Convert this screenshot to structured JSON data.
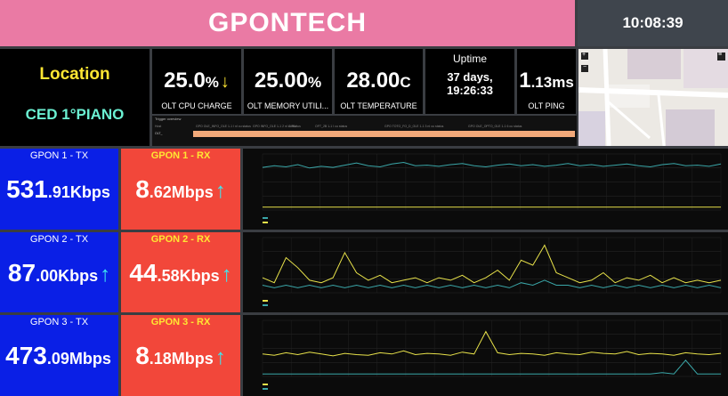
{
  "header": {
    "title": "GPONTECH",
    "clock": "10:08:39"
  },
  "location": {
    "title": "Location",
    "value": "CED 1°PIANO"
  },
  "metrics": {
    "cpu": {
      "int": "25.0",
      "unit": "%",
      "arrow": "↓",
      "label": "OLT CPU CHARGE"
    },
    "memory": {
      "int": "25.00",
      "unit": "%",
      "label": "OLT MEMORY UTILI..."
    },
    "temperature": {
      "int": "28.00",
      "unit": "C",
      "label": "OLT TEMPERATURE"
    },
    "uptime": {
      "label": "Uptime",
      "line1": "37 days,",
      "line2": "19:26:33"
    },
    "ping": {
      "int": "1",
      "rest": ".13ms",
      "label": "OLT PING"
    }
  },
  "trigger": {
    "title": "Trigger overview",
    "headers": [
      "Host",
      "GPO OLE_INFO_OLE 1-1 I nI cu status",
      "GPO INFO_OLE 1-1 2 nI cu status",
      "OIPU",
      "OFT_2B 1-1 I cu status",
      "GPO TOTO_FO_D_OLE 1-1 3 nI cu status",
      "GPO OLE_OPTO_OLE 1-1 6 cu status"
    ],
    "row": "OLT_"
  },
  "gpon": [
    {
      "tx_title": "GPON 1 - TX",
      "tx_int": "531",
      "tx_rest": ".91Kbps",
      "tx_arrow": "",
      "rx_title": "GPON 1 - RX",
      "rx_int": "8",
      "rx_rest": ".62Mbps",
      "rx_arrow": "↑"
    },
    {
      "tx_title": "GPON 2 - TX",
      "tx_int": "87",
      "tx_rest": ".00Kbps",
      "tx_arrow": "↑",
      "rx_title": "GPON 2 - RX",
      "rx_int": "44",
      "rx_rest": ".58Kbps",
      "rx_arrow": "↑"
    },
    {
      "tx_title": "GPON 3 - TX",
      "tx_int": "473",
      "tx_rest": ".09Mbps",
      "tx_arrow": "",
      "rx_title": "GPON 3 - RX",
      "rx_int": "8",
      "rx_rest": ".18Mbps",
      "rx_arrow": "↑"
    }
  ],
  "colors": {
    "title_bg": "#ea7aa4",
    "tx_bg": "#0a1fe6",
    "rx_bg": "#f2473a",
    "accent_yellow": "#ffe633",
    "accent_cyan": "#3ee8f0",
    "series_yellow": "#e8e24a",
    "series_teal": "#3aa6a8"
  },
  "chart_data": [
    {
      "type": "line",
      "series": [
        {
          "color": "#3aa6a8",
          "values": [
            7.6,
            7.9,
            7.7,
            8.1,
            7.5,
            7.8,
            7.6,
            8.0,
            8.4,
            7.9,
            7.7,
            8.2,
            8.5,
            7.9,
            8.0,
            7.8,
            8.1,
            8.3,
            7.9,
            7.7,
            8.0,
            8.2,
            7.9,
            8.1,
            7.8,
            8.0,
            8.3,
            7.9,
            8.1,
            7.8,
            8.0,
            8.2,
            7.9,
            7.7,
            8.1,
            8.3,
            7.9,
            8.0,
            7.8,
            8.2
          ]
        },
        {
          "color": "#e8e24a",
          "values": [
            0.5,
            0.5,
            0.5,
            0.5,
            0.5,
            0.5,
            0.5,
            0.5,
            0.5,
            0.5,
            0.5,
            0.5,
            0.5,
            0.5,
            0.5,
            0.5,
            0.5,
            0.5,
            0.5,
            0.5,
            0.5,
            0.5,
            0.5,
            0.5,
            0.5,
            0.5,
            0.5,
            0.5,
            0.5,
            0.5,
            0.5,
            0.5,
            0.5,
            0.5,
            0.5,
            0.5,
            0.5,
            0.5,
            0.5,
            0.5
          ]
        }
      ],
      "ylim": [
        0,
        10
      ]
    },
    {
      "type": "line",
      "series": [
        {
          "color": "#e8e24a",
          "values": [
            0.6,
            0.4,
            1.4,
            1.0,
            0.5,
            0.4,
            0.6,
            1.6,
            0.8,
            0.5,
            0.7,
            0.4,
            0.5,
            0.6,
            0.4,
            0.6,
            0.5,
            0.7,
            0.4,
            0.6,
            0.9,
            0.5,
            1.3,
            1.1,
            1.9,
            0.8,
            0.6,
            0.4,
            0.5,
            0.8,
            0.4,
            0.6,
            0.5,
            0.7,
            0.4,
            0.6,
            0.4,
            0.5,
            0.4,
            0.5
          ]
        },
        {
          "color": "#3aa6a8",
          "values": [
            0.3,
            0.2,
            0.3,
            0.2,
            0.3,
            0.2,
            0.3,
            0.2,
            0.3,
            0.2,
            0.3,
            0.2,
            0.3,
            0.2,
            0.3,
            0.2,
            0.3,
            0.2,
            0.3,
            0.2,
            0.3,
            0.2,
            0.4,
            0.3,
            0.5,
            0.3,
            0.3,
            0.2,
            0.3,
            0.2,
            0.3,
            0.2,
            0.3,
            0.2,
            0.3,
            0.2,
            0.3,
            0.2,
            0.3,
            0.2
          ]
        }
      ],
      "ylim": [
        0,
        2.2
      ]
    },
    {
      "type": "line",
      "series": [
        {
          "color": "#e8e24a",
          "values": [
            3.6,
            3.4,
            3.8,
            3.5,
            3.9,
            3.6,
            3.3,
            3.7,
            3.5,
            3.4,
            3.8,
            3.6,
            4.1,
            3.5,
            3.7,
            3.6,
            3.4,
            3.9,
            3.6,
            7.2,
            3.8,
            3.5,
            3.7,
            3.6,
            3.4,
            3.8,
            3.6,
            3.5,
            3.9,
            3.7,
            3.6,
            4.0,
            3.5,
            3.7,
            3.6,
            3.4,
            3.8,
            3.6,
            3.5,
            3.7
          ]
        },
        {
          "color": "#3aa6a8",
          "values": [
            0.4,
            0.4,
            0.4,
            0.4,
            0.4,
            0.4,
            0.4,
            0.4,
            0.4,
            0.4,
            0.4,
            0.4,
            0.4,
            0.4,
            0.4,
            0.4,
            0.4,
            0.4,
            0.4,
            0.4,
            0.4,
            0.4,
            0.4,
            0.4,
            0.4,
            0.4,
            0.4,
            0.4,
            0.4,
            0.4,
            0.4,
            0.4,
            0.4,
            0.4,
            0.6,
            0.4,
            2.6,
            0.4,
            0.4,
            0.4
          ]
        }
      ],
      "ylim": [
        0,
        9
      ]
    }
  ]
}
